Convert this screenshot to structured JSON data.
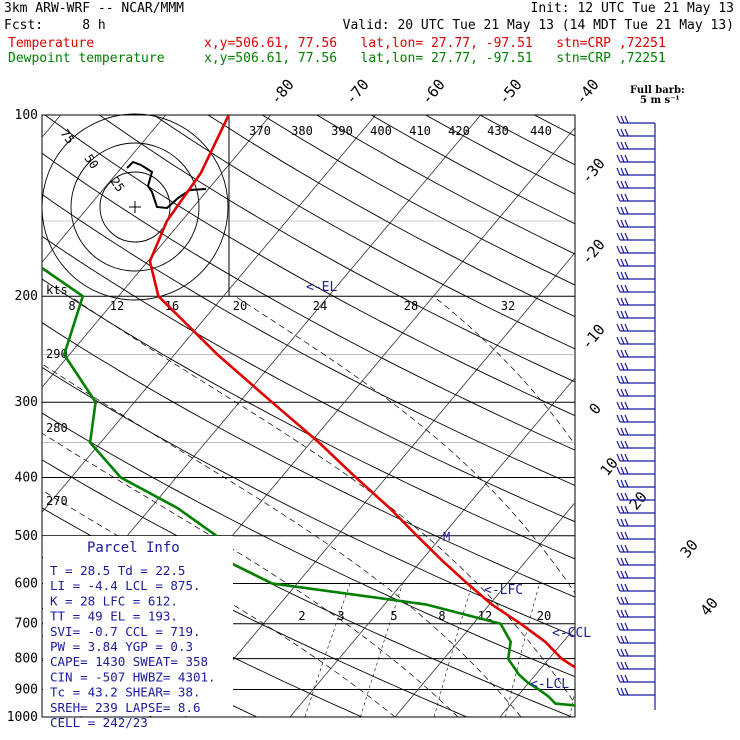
{
  "header": {
    "line1_left": "3km ARW-WRF -- NCAR/MMM",
    "line1_right": "Init: 12 UTC Tue 21 May 13",
    "line2_left": "Fcst:     8 h",
    "line2_right": "Valid: 20 UTC Tue 21 May 13 (14 MDT Tue 21 May 13)",
    "temp_label": "Temperature",
    "dew_label": "Dewpoint temperature",
    "location_info": "x,y=506.61, 77.56   lat,lon= 27.77, -97.51   stn=CRP ,72251"
  },
  "colors": {
    "temperature": "#e00000",
    "dewpoint": "#008000",
    "barbs": "#1a1aa0",
    "text_blue": "#1a1aa0"
  },
  "barb_legend": {
    "title": "Full barb:",
    "unit": "5 m s⁻¹"
  },
  "parcel_info": {
    "title": "Parcel Info",
    "rows": [
      "T  =    28.5  Td =  22.5",
      "LI =    -4.4  LCL =  875.",
      "K  =      28  LFC =  612.",
      "TT =      49  EL  =  193.",
      "SVI=    -0.7  CCL =  719.",
      "PW =    3.84  YGP =   0.3",
      "CAPE=   1430  SWEAT=  358",
      "CIN =   -507  HWBZ= 4301.",
      "Tc =    43.2  SHEAR=  38.",
      "SREH=    239  LAPSE=  8.6",
      "CELL = 242/23"
    ]
  },
  "hodograph": {
    "unit_label": "kts",
    "ring_labels": [
      "75",
      "50",
      "25"
    ]
  },
  "levels_labels": {
    "el": "<-EL",
    "lfc": "<-LFC",
    "ccl": "<-CCL",
    "lcl": "<-LCL",
    "m_marker": "M"
  },
  "chart_data": {
    "type": "line",
    "title": "",
    "xlabel": "",
    "ylabel": "",
    "pressure_ticks": [
      100,
      200,
      300,
      400,
      500,
      600,
      700,
      800,
      900,
      1000
    ],
    "isotherm_labels": [
      "-80",
      "-70",
      "-60",
      "-50",
      "-40",
      "-30",
      "-20",
      "-10",
      "0",
      "10",
      "20",
      "30",
      "40"
    ],
    "theta_labels": [
      "370",
      "380",
      "390",
      "400",
      "410",
      "420",
      "430",
      "440"
    ],
    "theta_left_labels": [
      "290",
      "280",
      "270"
    ],
    "mixing_ratio_labels": [
      "2",
      "3",
      "5",
      "8",
      "12",
      "20"
    ],
    "hodo_speed_labels": [
      "8",
      "12",
      "16",
      "20",
      "24",
      "28",
      "32"
    ],
    "series": [
      {
        "name": "Temperature",
        "p": [
          1000,
          975,
          950,
          925,
          900,
          875,
          850,
          800,
          750,
          700,
          650,
          600,
          550,
          500,
          450,
          400,
          350,
          300,
          250,
          200,
          175,
          150,
          125,
          100
        ],
        "t": [
          28.5,
          24.8,
          22.4,
          21.0,
          19.3,
          16.8,
          14.8,
          11.2,
          8.3,
          4.5,
          0.2,
          -3.8,
          -8.0,
          -12.4,
          -17.2,
          -22.9,
          -29.2,
          -36.9,
          -45.9,
          -56.2,
          -59.8,
          -61.4,
          -62.0,
          -64.0
        ]
      },
      {
        "name": "Dewpoint temperature",
        "p": [
          1000,
          975,
          950,
          925,
          900,
          875,
          850,
          800,
          750,
          700,
          650,
          600,
          550,
          500,
          450,
          400,
          350,
          300,
          250,
          200,
          175,
          150,
          125,
          100
        ],
        "t": [
          22.5,
          21.8,
          14.2,
          13.0,
          11.5,
          9.8,
          8.4,
          6.1,
          5.0,
          2.6,
          -6.1,
          -22.4,
          -28.6,
          -31.5,
          -37.4,
          -45.3,
          -51.0,
          -53.7,
          -60.5,
          -63.4,
          -71.0,
          -80.1,
          -84.5,
          -86.0
        ]
      }
    ]
  }
}
